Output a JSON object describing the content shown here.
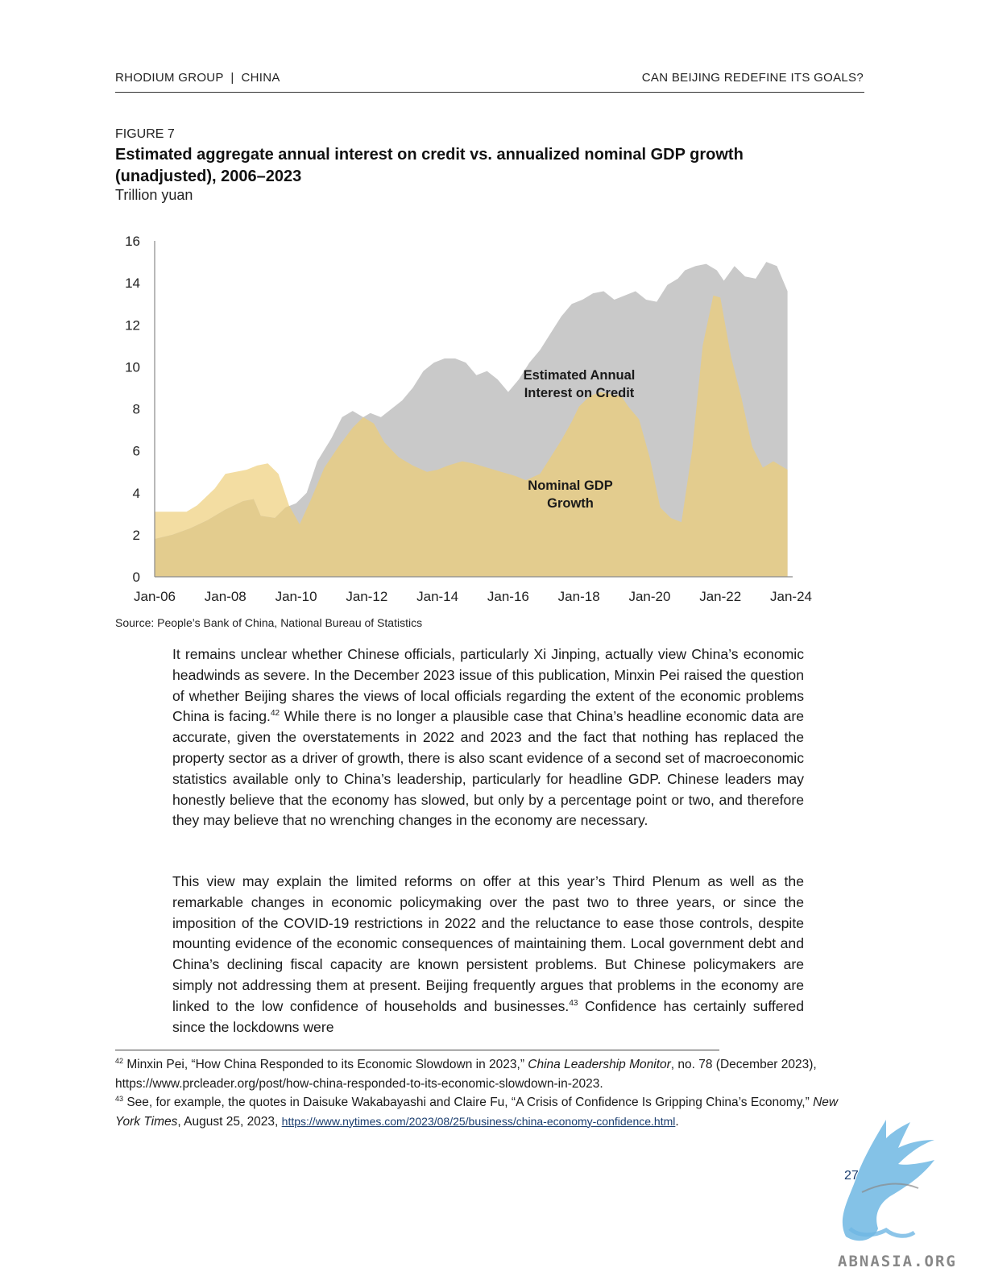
{
  "header": {
    "left": "RHODIUM GROUP  |  CHINA",
    "right": "CAN BEIJING REDEFINE ITS GOALS?"
  },
  "figure": {
    "label": "FIGURE 7",
    "title": "Estimated aggregate annual interest on credit vs. annualized nominal GDP growth (unadjusted), 2006–2023",
    "unit": "Trillion yuan",
    "source": "Source: People’s Bank of China, National Bureau of Statistics"
  },
  "chart_data": {
    "type": "area",
    "x_ticks": [
      "Jan-06",
      "Jan-08",
      "Jan-10",
      "Jan-12",
      "Jan-14",
      "Jan-16",
      "Jan-18",
      "Jan-20",
      "Jan-22",
      "Jan-24"
    ],
    "y_ticks": [
      0,
      2,
      4,
      6,
      8,
      10,
      12,
      14,
      16
    ],
    "ylim": [
      0,
      16
    ],
    "xlim": [
      2006.0,
      2024.0
    ],
    "grid": false,
    "colors": {
      "interest": "#c9c9c9",
      "gdp": "#e3cc8e",
      "gdp_overlap": "#f3dda2"
    },
    "series": [
      {
        "name": "Estimated Annual Interest on Credit",
        "x": [
          2006.0,
          2006.5,
          2007.0,
          2007.5,
          2008.0,
          2008.5,
          2008.8,
          2009.0,
          2009.4,
          2009.7,
          2010.0,
          2010.3,
          2010.6,
          2011.0,
          2011.3,
          2011.6,
          2011.9,
          2012.1,
          2012.4,
          2012.7,
          2013.0,
          2013.3,
          2013.6,
          2013.9,
          2014.2,
          2014.5,
          2014.8,
          2015.1,
          2015.4,
          2015.7,
          2016.0,
          2016.3,
          2016.6,
          2016.9,
          2017.2,
          2017.5,
          2017.8,
          2018.1,
          2018.4,
          2018.7,
          2019.0,
          2019.3,
          2019.6,
          2019.9,
          2020.2,
          2020.5,
          2020.8,
          2021.0,
          2021.3,
          2021.6,
          2021.9,
          2022.1,
          2022.4,
          2022.7,
          2023.0,
          2023.3,
          2023.6,
          2023.9
        ],
        "values": [
          1.8,
          2.0,
          2.3,
          2.7,
          3.2,
          3.6,
          3.7,
          2.9,
          2.8,
          3.3,
          3.5,
          4.0,
          5.5,
          6.6,
          7.6,
          7.9,
          7.6,
          7.8,
          7.6,
          8.0,
          8.4,
          9.0,
          9.8,
          10.2,
          10.4,
          10.4,
          10.2,
          9.6,
          9.8,
          9.4,
          8.8,
          9.4,
          10.2,
          10.8,
          11.6,
          12.4,
          13.0,
          13.2,
          13.5,
          13.6,
          13.2,
          13.4,
          13.6,
          13.2,
          13.1,
          13.9,
          14.2,
          14.6,
          14.8,
          14.9,
          14.6,
          14.1,
          14.8,
          14.3,
          14.2,
          15.0,
          14.8,
          13.6
        ]
      },
      {
        "name": "Nominal GDP Growth",
        "x": [
          2006.0,
          2006.9,
          2007.2,
          2007.7,
          2008.0,
          2008.6,
          2008.9,
          2009.2,
          2009.5,
          2009.8,
          2010.1,
          2010.4,
          2010.8,
          2011.2,
          2011.6,
          2011.9,
          2012.2,
          2012.5,
          2012.9,
          2013.3,
          2013.7,
          2014.0,
          2014.3,
          2014.7,
          2015.0,
          2015.4,
          2015.8,
          2016.2,
          2016.5,
          2016.9,
          2017.2,
          2017.5,
          2017.8,
          2018.0,
          2018.3,
          2018.6,
          2018.9,
          2019.2,
          2019.4,
          2019.7,
          2020.0,
          2020.3,
          2020.6,
          2020.9,
          2021.2,
          2021.5,
          2021.8,
          2022.0,
          2022.3,
          2022.6,
          2022.9,
          2023.2,
          2023.5,
          2023.9
        ],
        "values": [
          3.1,
          3.1,
          3.4,
          4.2,
          4.9,
          5.1,
          5.3,
          5.4,
          4.9,
          3.4,
          2.5,
          3.6,
          5.2,
          6.2,
          7.1,
          7.6,
          7.3,
          6.4,
          5.7,
          5.3,
          5.0,
          5.1,
          5.3,
          5.5,
          5.4,
          5.2,
          5.0,
          4.8,
          4.6,
          4.9,
          5.7,
          6.5,
          7.4,
          8.1,
          8.6,
          8.8,
          8.7,
          8.6,
          8.1,
          7.5,
          5.7,
          3.3,
          2.8,
          2.6,
          6.0,
          11.0,
          13.4,
          13.3,
          10.5,
          8.5,
          6.2,
          5.2,
          5.5,
          5.1
        ]
      }
    ],
    "annotations": [
      {
        "text_line1": "Estimated Annual",
        "text_line2": "Interest on Credit"
      },
      {
        "text_line1": "Nominal GDP",
        "text_line2": "Growth"
      }
    ]
  },
  "body": {
    "para1_text": "It remains unclear whether Chinese officials, particularly Xi Jinping, actually view China’s economic headwinds as severe. In the December 2023 issue of this publication, Minxin Pei raised the question of whether Beijing shares the views of local officials regarding the extent of the economic problems China is facing.",
    "para1_sup": "42",
    "para1_rest": " While there is no longer a plausible case that China’s headline economic data are accurate, given the overstatements in 2022 and 2023 and the fact that nothing has replaced the property sector as a driver of growth, there is also scant evidence of a second set of macroeconomic statistics available only to China’s leadership, particularly for headline GDP. Chinese leaders may honestly believe that the economy has slowed, but only by a percentage point or two, and therefore they may believe that no wrenching changes in the economy are necessary.",
    "para2_text": "This view may explain the limited reforms on offer at this year’s Third Plenum as well as the remarkable changes in economic policymaking over the past two to three years, or since the imposition of the COVID-19 restrictions in 2022 and the reluctance to ease those controls, despite mounting evidence of the economic consequences of maintaining them. Local government debt and China’s declining fiscal capacity are known persistent problems. But Chinese policymakers are simply not addressing them at present. Beijing frequently argues that problems in the economy are linked to the low confidence of households and businesses.",
    "para2_sup": "43",
    "para2_rest": " Confidence has certainly suffered since the lockdowns were"
  },
  "footnotes": {
    "fn42_num": "42",
    "fn42_a": " Minxin Pei, “How China Responded to its Economic Slowdown in 2023,” ",
    "fn42_em": "China Leadership Monitor",
    "fn42_b": ", no. 78 (December 2023), https://www.prcleader.org/post/how-china-responded-to-its-economic-slowdown-in-2023.",
    "fn43_num": "43",
    "fn43_a": " See, for example, the quotes in Daisuke Wakabayashi and Claire Fu, “A Crisis of Confidence Is Gripping China’s Economy,” ",
    "fn43_em": "New York Times",
    "fn43_b": ", August 25, 2023, ",
    "fn43_link": "https://www.nytimes.com/2023/08/25/business/china-economy-confidence.html",
    "fn43_end": "."
  },
  "page_number": "27",
  "watermark": {
    "icon": "griffin-logo-icon",
    "text": "ABNASIA.ORG"
  }
}
